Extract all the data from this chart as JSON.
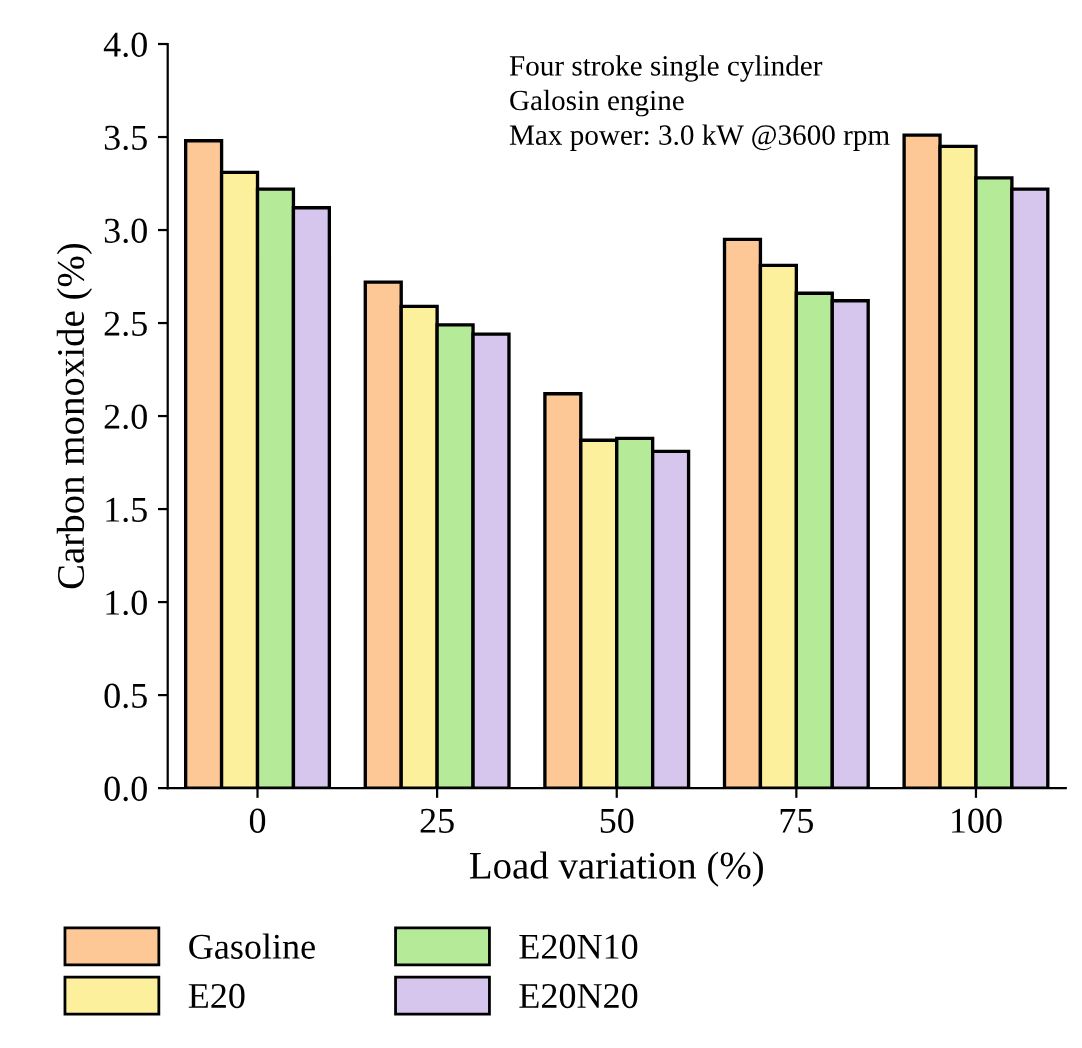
{
  "chart_data": {
    "type": "bar",
    "xlabel": "Load variation (%)",
    "ylabel": "Carbon monoxide (%)",
    "categories": [
      "0",
      "25",
      "50",
      "75",
      "100"
    ],
    "series": [
      {
        "name": "Gasoline",
        "color": "#fdc896",
        "values": [
          3.48,
          2.72,
          2.12,
          2.95,
          3.51
        ]
      },
      {
        "name": "E20",
        "color": "#fdf09c",
        "values": [
          3.31,
          2.59,
          1.87,
          2.81,
          3.45
        ]
      },
      {
        "name": "E20N10",
        "color": "#b4ea98",
        "values": [
          3.22,
          2.49,
          1.88,
          2.66,
          3.28
        ]
      },
      {
        "name": "E20N20",
        "color": "#d6c6ee",
        "values": [
          3.12,
          2.44,
          1.81,
          2.62,
          3.22
        ]
      }
    ],
    "ylim": [
      0,
      4.0
    ],
    "yticks": [
      {
        "value": 0,
        "label": "0.0"
      },
      {
        "value": 0.5,
        "label": "0.5"
      },
      {
        "value": 1,
        "label": "1.0"
      },
      {
        "value": 1.5,
        "label": "1.5"
      },
      {
        "value": 2,
        "label": "2.0"
      },
      {
        "value": 2.5,
        "label": "2.5"
      },
      {
        "value": 3,
        "label": "3.0"
      },
      {
        "value": 3.5,
        "label": "3.5"
      },
      {
        "value": 4,
        "label": "4.0"
      }
    ],
    "annotations": [
      "Four stroke single cylinder\nGalosin engine\nMax power: 3.0 kW @3600 rpm"
    ],
    "grid": false,
    "legend": "bottom"
  }
}
